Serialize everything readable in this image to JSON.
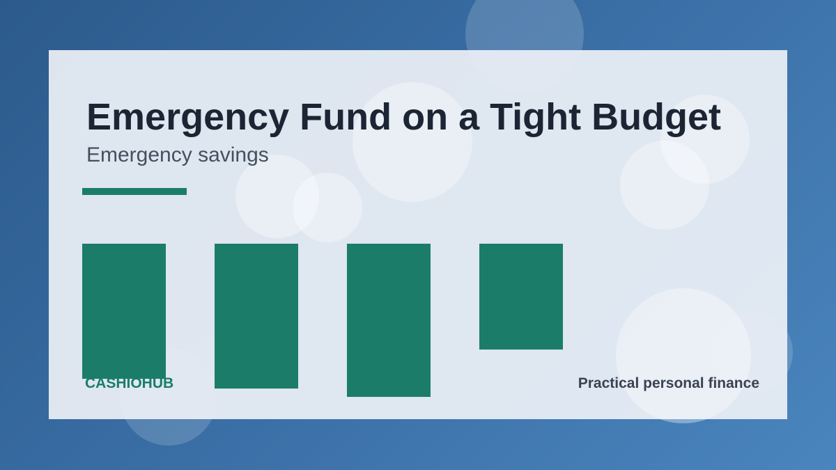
{
  "slide": {
    "title": "Emergency Fund on a Tight Budget",
    "subtitle": "Emergency savings",
    "brand": "CASHIOHUB",
    "tagline": "Practical personal finance"
  },
  "decorative_bars": {
    "count": 4
  },
  "colors": {
    "background_start": "#2c5a8c",
    "background_end": "#4a85bd",
    "card": "#e6ebf2",
    "accent": "#1b7d69",
    "title": "#1c2533",
    "subtitle": "#44505f",
    "tagline": "#3a4352"
  }
}
